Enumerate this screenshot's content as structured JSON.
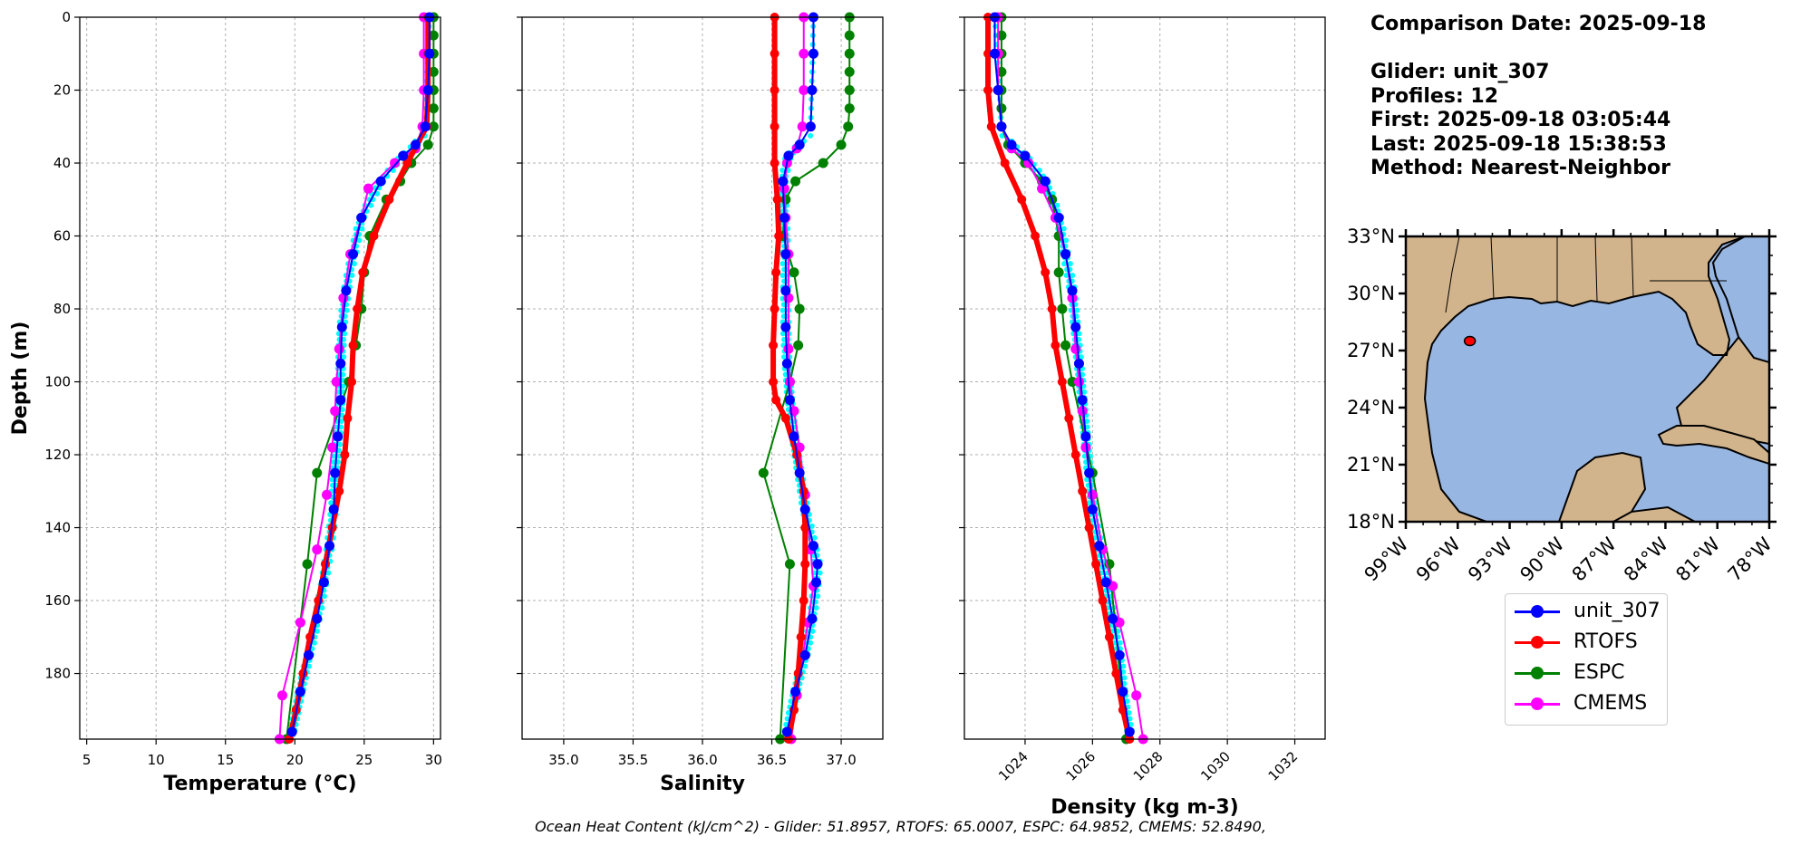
{
  "info": {
    "comparison_date": "Comparison Date: 2025-09-18",
    "glider": "Glider: unit_307",
    "profiles": "Profiles: 12",
    "first": "First: 2025-09-18 03:05:44",
    "last": "Last: 2025-09-18 15:38:53",
    "method": "Method: Nearest-Neighbor"
  },
  "footer": "Ocean Heat Content (kJ/cm^2) - Glider: 51.8957,  RTOFS: 65.0007,  ESPC: 64.9852,  CMEMS: 52.8490,",
  "legend": [
    {
      "label": "unit_307",
      "color": "#0000ff"
    },
    {
      "label": "RTOFS",
      "color": "#ff0000"
    },
    {
      "label": "ESPC",
      "color": "#008000"
    },
    {
      "label": "CMEMS",
      "color": "#ff00ff"
    }
  ],
  "colors": {
    "glider_raw": "#00ffff",
    "land": "#d2b48c",
    "ocean": "#98b6e2",
    "platform": "#ff0000"
  },
  "chart_data": [
    {
      "type": "line",
      "xlabel": "Temperature (°C)",
      "ylabel": "Depth (m)",
      "xlim": [
        4.5,
        30.5
      ],
      "ylim": [
        198,
        0
      ],
      "xticks": [
        "5",
        "10",
        "15",
        "20",
        "25",
        "30"
      ],
      "yticks": [
        "0",
        "20",
        "40",
        "60",
        "80",
        "100",
        "120",
        "140",
        "160",
        "180"
      ],
      "grid": true,
      "series": [
        {
          "name": "unit_307",
          "color": "#0000ff",
          "width": 2,
          "marker": true,
          "depth": [
            0,
            10,
            20,
            30,
            35,
            38,
            45,
            55,
            65,
            75,
            85,
            95,
            105,
            115,
            125,
            135,
            145,
            155,
            165,
            175,
            185,
            196
          ],
          "values": [
            29.7,
            29.7,
            29.6,
            29.4,
            28.7,
            27.8,
            26.2,
            24.8,
            24.2,
            23.7,
            23.4,
            23.3,
            23.3,
            23.1,
            22.9,
            22.8,
            22.5,
            22.1,
            21.6,
            21.0,
            20.4,
            19.8
          ]
        },
        {
          "name": "RTOFS",
          "color": "#ff0000",
          "width": 6,
          "marker": true,
          "depth": [
            0,
            10,
            20,
            30,
            40,
            50,
            60,
            70,
            80,
            90,
            100,
            110,
            120,
            130,
            140,
            150,
            160,
            170,
            180,
            190,
            198
          ],
          "values": [
            29.6,
            29.6,
            29.6,
            29.5,
            28.1,
            26.8,
            25.7,
            24.9,
            24.5,
            24.2,
            24.1,
            23.8,
            23.6,
            23.2,
            22.7,
            22.2,
            21.7,
            21.1,
            20.6,
            20.1,
            19.6
          ]
        },
        {
          "name": "ESPC",
          "color": "#008000",
          "width": 2,
          "marker": true,
          "depth": [
            0,
            5,
            10,
            15,
            20,
            25,
            30,
            35,
            40,
            45,
            50,
            60,
            70,
            80,
            90,
            100,
            125,
            150,
            198
          ],
          "values": [
            30.0,
            30.0,
            30.0,
            30.0,
            30.0,
            30.0,
            30.0,
            29.6,
            28.4,
            27.6,
            26.6,
            25.4,
            25.0,
            24.8,
            24.4,
            23.9,
            21.6,
            20.9,
            19.4
          ]
        },
        {
          "name": "CMEMS",
          "color": "#ff00ff",
          "width": 2,
          "marker": true,
          "depth": [
            0,
            10,
            20,
            30,
            36,
            40,
            47,
            55,
            65,
            77,
            91,
            100,
            108,
            118,
            131,
            146,
            166,
            186,
            198
          ],
          "values": [
            29.3,
            29.3,
            29.3,
            29.2,
            28.7,
            27.2,
            25.3,
            24.8,
            24.0,
            23.5,
            23.2,
            23.0,
            22.9,
            22.7,
            22.3,
            21.6,
            20.4,
            19.1,
            18.9
          ]
        }
      ]
    },
    {
      "type": "line",
      "xlabel": "Salinity",
      "xlim": [
        34.7,
        37.3
      ],
      "ylim": [
        198,
        0
      ],
      "xticks": [
        "35.0",
        "35.5",
        "36.0",
        "36.5",
        "37.0"
      ],
      "grid": true,
      "series": [
        {
          "name": "unit_307",
          "color": "#0000ff",
          "width": 2,
          "marker": true,
          "depth": [
            0,
            10,
            20,
            30,
            35,
            38,
            45,
            55,
            65,
            75,
            85,
            95,
            105,
            115,
            125,
            135,
            145,
            150,
            155,
            165,
            175,
            185,
            196
          ],
          "values": [
            36.8,
            36.8,
            36.79,
            36.78,
            36.7,
            36.62,
            36.58,
            36.59,
            36.6,
            36.6,
            36.6,
            36.61,
            36.63,
            36.66,
            36.7,
            36.74,
            36.8,
            36.83,
            36.82,
            36.79,
            36.74,
            36.67,
            36.61
          ]
        },
        {
          "name": "RTOFS",
          "color": "#ff0000",
          "width": 6,
          "marker": true,
          "depth": [
            0,
            10,
            20,
            30,
            40,
            50,
            60,
            70,
            80,
            90,
            100,
            105,
            110,
            120,
            130,
            140,
            150,
            160,
            170,
            180,
            190,
            198
          ],
          "values": [
            36.52,
            36.52,
            36.52,
            36.52,
            36.52,
            36.54,
            36.55,
            36.53,
            36.52,
            36.51,
            36.51,
            36.53,
            36.6,
            36.68,
            36.73,
            36.74,
            36.74,
            36.73,
            36.71,
            36.69,
            36.66,
            36.62
          ]
        },
        {
          "name": "ESPC",
          "color": "#008000",
          "width": 2,
          "marker": true,
          "depth": [
            0,
            5,
            10,
            15,
            20,
            25,
            30,
            35,
            40,
            45,
            50,
            60,
            70,
            80,
            90,
            100,
            125,
            150,
            198
          ],
          "values": [
            37.06,
            37.06,
            37.06,
            37.06,
            37.06,
            37.06,
            37.05,
            37.0,
            36.87,
            36.67,
            36.6,
            36.58,
            36.66,
            36.7,
            36.69,
            36.63,
            36.44,
            36.63,
            36.56
          ]
        },
        {
          "name": "CMEMS",
          "color": "#ff00ff",
          "width": 2,
          "marker": true,
          "depth": [
            0,
            10,
            20,
            30,
            36,
            40,
            47,
            55,
            65,
            77,
            91,
            100,
            108,
            118,
            131,
            146,
            156,
            166,
            186,
            198
          ],
          "values": [
            36.73,
            36.73,
            36.73,
            36.72,
            36.68,
            36.61,
            36.59,
            36.6,
            36.62,
            36.62,
            36.62,
            36.63,
            36.66,
            36.7,
            36.74,
            36.78,
            36.8,
            36.76,
            36.68,
            36.64
          ]
        }
      ]
    },
    {
      "type": "line",
      "xlabel": "Density (kg m-3)",
      "xlim": [
        1022.2,
        1032.9
      ],
      "ylim": [
        198,
        0
      ],
      "xticks": [
        "1024",
        "1026",
        "1028",
        "1030",
        "1032"
      ],
      "grid": true,
      "series": [
        {
          "name": "unit_307",
          "color": "#0000ff",
          "width": 2,
          "marker": true,
          "depth": [
            0,
            10,
            20,
            30,
            35,
            38,
            45,
            55,
            65,
            75,
            85,
            95,
            105,
            115,
            125,
            135,
            145,
            155,
            165,
            175,
            185,
            196
          ],
          "values": [
            1023.1,
            1023.1,
            1023.2,
            1023.3,
            1023.6,
            1024.0,
            1024.6,
            1025.0,
            1025.2,
            1025.4,
            1025.5,
            1025.6,
            1025.7,
            1025.8,
            1025.9,
            1026.0,
            1026.2,
            1026.4,
            1026.6,
            1026.8,
            1026.9,
            1027.1
          ]
        },
        {
          "name": "RTOFS",
          "color": "#ff0000",
          "width": 6,
          "marker": true,
          "depth": [
            0,
            10,
            20,
            30,
            40,
            50,
            60,
            70,
            80,
            90,
            100,
            110,
            120,
            130,
            140,
            150,
            160,
            170,
            180,
            190,
            198
          ],
          "values": [
            1022.9,
            1022.9,
            1022.9,
            1023.0,
            1023.4,
            1023.9,
            1024.3,
            1024.6,
            1024.8,
            1024.9,
            1025.1,
            1025.3,
            1025.5,
            1025.7,
            1025.9,
            1026.1,
            1026.3,
            1026.5,
            1026.7,
            1026.9,
            1027.1
          ]
        },
        {
          "name": "ESPC",
          "color": "#008000",
          "width": 2,
          "marker": true,
          "depth": [
            0,
            5,
            10,
            15,
            20,
            25,
            30,
            35,
            40,
            45,
            50,
            60,
            70,
            80,
            90,
            100,
            125,
            150,
            198
          ],
          "values": [
            1023.3,
            1023.3,
            1023.3,
            1023.3,
            1023.3,
            1023.3,
            1023.3,
            1023.5,
            1024.0,
            1024.5,
            1024.8,
            1025.0,
            1025.0,
            1025.1,
            1025.2,
            1025.4,
            1026.0,
            1026.5,
            1027.0
          ]
        },
        {
          "name": "CMEMS",
          "color": "#ff00ff",
          "width": 2,
          "marker": true,
          "depth": [
            0,
            10,
            20,
            30,
            36,
            40,
            47,
            55,
            65,
            77,
            91,
            100,
            108,
            118,
            131,
            146,
            156,
            166,
            186,
            198
          ],
          "values": [
            1023.2,
            1023.2,
            1023.2,
            1023.3,
            1023.6,
            1024.1,
            1024.5,
            1024.9,
            1025.2,
            1025.4,
            1025.5,
            1025.6,
            1025.7,
            1025.8,
            1026.0,
            1026.3,
            1026.6,
            1026.8,
            1027.3,
            1027.5
          ]
        }
      ]
    },
    {
      "type": "map",
      "xlim": [
        -99,
        -78
      ],
      "ylim": [
        18,
        33
      ],
      "xticks": [
        "99°W",
        "96°W",
        "93°W",
        "90°W",
        "87°W",
        "84°W",
        "81°W",
        "78°W"
      ],
      "yticks": [
        "33°N",
        "30°N",
        "27°N",
        "24°N",
        "21°N",
        "18°N"
      ],
      "glider_position": {
        "lon": -95.3,
        "lat": 27.5
      }
    }
  ]
}
